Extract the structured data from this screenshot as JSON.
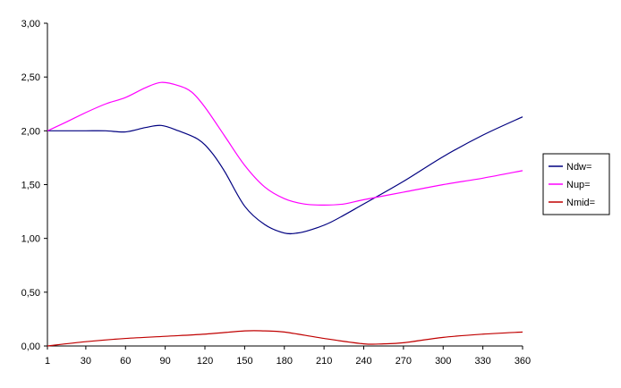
{
  "chart_data": {
    "type": "line",
    "x": [
      1,
      30,
      60,
      90,
      120,
      150,
      180,
      210,
      240,
      270,
      300,
      330,
      360
    ],
    "x_tick_labels": [
      "1",
      "30",
      "60",
      "90",
      "120",
      "150",
      "180",
      "210",
      "240",
      "270",
      "300",
      "330",
      "360"
    ],
    "y_tick_labels": [
      "0,00",
      "0,50",
      "1,00",
      "1,50",
      "2,00",
      "2,50",
      "3,00"
    ],
    "ylim": [
      0,
      3
    ],
    "y_ticks": [
      0,
      0.5,
      1.0,
      1.5,
      2.0,
      2.5,
      3.0
    ],
    "grid": false,
    "legend_position": "right",
    "series": [
      {
        "name": "Ndw=",
        "color": "#000080",
        "x": [
          1,
          15,
          30,
          45,
          60,
          75,
          87,
          100,
          115,
          125,
          135,
          150,
          165,
          180,
          190,
          200,
          215,
          240,
          270,
          300,
          330,
          360
        ],
        "values": [
          2.0,
          2.0,
          2.0,
          2.0,
          1.99,
          2.03,
          2.05,
          2.0,
          1.92,
          1.8,
          1.62,
          1.3,
          1.13,
          1.05,
          1.05,
          1.08,
          1.15,
          1.32,
          1.53,
          1.76,
          1.96,
          2.13
        ]
      },
      {
        "name": "Nup=",
        "color": "#ff00ff",
        "x": [
          1,
          15,
          30,
          45,
          60,
          75,
          87,
          100,
          110,
          120,
          135,
          150,
          165,
          180,
          195,
          210,
          225,
          240,
          270,
          300,
          330,
          360
        ],
        "values": [
          2.0,
          2.08,
          2.17,
          2.25,
          2.31,
          2.4,
          2.45,
          2.42,
          2.36,
          2.22,
          1.95,
          1.68,
          1.48,
          1.37,
          1.32,
          1.31,
          1.32,
          1.36,
          1.43,
          1.5,
          1.56,
          1.63
        ]
      },
      {
        "name": "Nmid=",
        "color": "#c00000",
        "x": [
          1,
          30,
          60,
          90,
          120,
          150,
          165,
          180,
          210,
          240,
          255,
          270,
          300,
          330,
          360
        ],
        "values": [
          0.0,
          0.04,
          0.07,
          0.09,
          0.11,
          0.14,
          0.14,
          0.13,
          0.07,
          0.02,
          0.02,
          0.03,
          0.08,
          0.11,
          0.13
        ]
      }
    ]
  }
}
